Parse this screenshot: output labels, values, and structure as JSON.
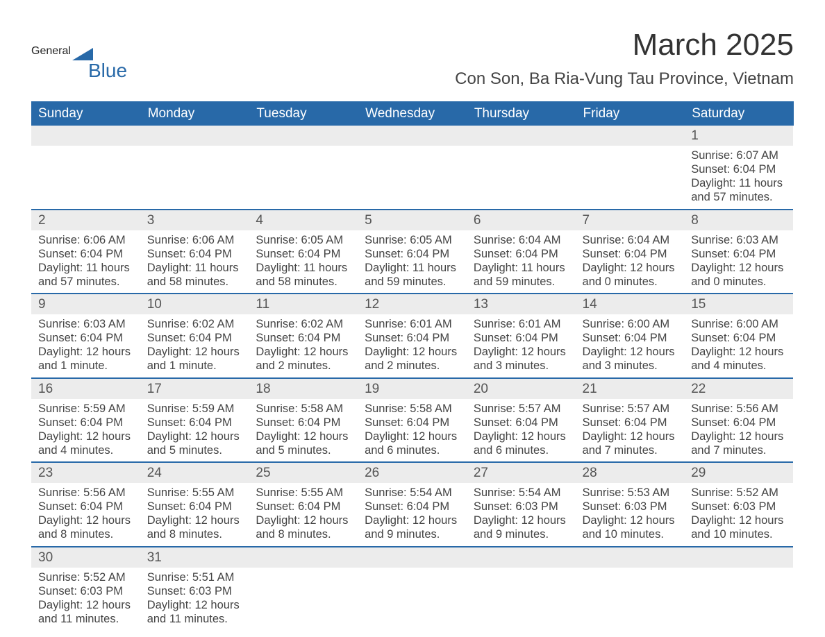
{
  "logo": {
    "text_general": "General",
    "text_blue": "Blue",
    "accent_color": "#2869a8"
  },
  "title": "March 2025",
  "location": "Con Son, Ba Ria-Vung Tau Province, Vietnam",
  "colors": {
    "header_bg": "#2869a8",
    "header_text": "#ffffff",
    "daynum_bg": "#ececec",
    "border": "#2869a8",
    "body_text": "#444444",
    "page_bg": "#ffffff"
  },
  "typography": {
    "title_fontsize": 44,
    "location_fontsize": 24,
    "header_fontsize": 19,
    "daynum_fontsize": 19,
    "body_fontsize": 16.5
  },
  "day_labels": [
    "Sunday",
    "Monday",
    "Tuesday",
    "Wednesday",
    "Thursday",
    "Friday",
    "Saturday"
  ],
  "weeks": [
    [
      null,
      null,
      null,
      null,
      null,
      null,
      {
        "n": "1",
        "sunrise": "Sunrise: 6:07 AM",
        "sunset": "Sunset: 6:04 PM",
        "daylight": "Daylight: 11 hours and 57 minutes."
      }
    ],
    [
      {
        "n": "2",
        "sunrise": "Sunrise: 6:06 AM",
        "sunset": "Sunset: 6:04 PM",
        "daylight": "Daylight: 11 hours and 57 minutes."
      },
      {
        "n": "3",
        "sunrise": "Sunrise: 6:06 AM",
        "sunset": "Sunset: 6:04 PM",
        "daylight": "Daylight: 11 hours and 58 minutes."
      },
      {
        "n": "4",
        "sunrise": "Sunrise: 6:05 AM",
        "sunset": "Sunset: 6:04 PM",
        "daylight": "Daylight: 11 hours and 58 minutes."
      },
      {
        "n": "5",
        "sunrise": "Sunrise: 6:05 AM",
        "sunset": "Sunset: 6:04 PM",
        "daylight": "Daylight: 11 hours and 59 minutes."
      },
      {
        "n": "6",
        "sunrise": "Sunrise: 6:04 AM",
        "sunset": "Sunset: 6:04 PM",
        "daylight": "Daylight: 11 hours and 59 minutes."
      },
      {
        "n": "7",
        "sunrise": "Sunrise: 6:04 AM",
        "sunset": "Sunset: 6:04 PM",
        "daylight": "Daylight: 12 hours and 0 minutes."
      },
      {
        "n": "8",
        "sunrise": "Sunrise: 6:03 AM",
        "sunset": "Sunset: 6:04 PM",
        "daylight": "Daylight: 12 hours and 0 minutes."
      }
    ],
    [
      {
        "n": "9",
        "sunrise": "Sunrise: 6:03 AM",
        "sunset": "Sunset: 6:04 PM",
        "daylight": "Daylight: 12 hours and 1 minute."
      },
      {
        "n": "10",
        "sunrise": "Sunrise: 6:02 AM",
        "sunset": "Sunset: 6:04 PM",
        "daylight": "Daylight: 12 hours and 1 minute."
      },
      {
        "n": "11",
        "sunrise": "Sunrise: 6:02 AM",
        "sunset": "Sunset: 6:04 PM",
        "daylight": "Daylight: 12 hours and 2 minutes."
      },
      {
        "n": "12",
        "sunrise": "Sunrise: 6:01 AM",
        "sunset": "Sunset: 6:04 PM",
        "daylight": "Daylight: 12 hours and 2 minutes."
      },
      {
        "n": "13",
        "sunrise": "Sunrise: 6:01 AM",
        "sunset": "Sunset: 6:04 PM",
        "daylight": "Daylight: 12 hours and 3 minutes."
      },
      {
        "n": "14",
        "sunrise": "Sunrise: 6:00 AM",
        "sunset": "Sunset: 6:04 PM",
        "daylight": "Daylight: 12 hours and 3 minutes."
      },
      {
        "n": "15",
        "sunrise": "Sunrise: 6:00 AM",
        "sunset": "Sunset: 6:04 PM",
        "daylight": "Daylight: 12 hours and 4 minutes."
      }
    ],
    [
      {
        "n": "16",
        "sunrise": "Sunrise: 5:59 AM",
        "sunset": "Sunset: 6:04 PM",
        "daylight": "Daylight: 12 hours and 4 minutes."
      },
      {
        "n": "17",
        "sunrise": "Sunrise: 5:59 AM",
        "sunset": "Sunset: 6:04 PM",
        "daylight": "Daylight: 12 hours and 5 minutes."
      },
      {
        "n": "18",
        "sunrise": "Sunrise: 5:58 AM",
        "sunset": "Sunset: 6:04 PM",
        "daylight": "Daylight: 12 hours and 5 minutes."
      },
      {
        "n": "19",
        "sunrise": "Sunrise: 5:58 AM",
        "sunset": "Sunset: 6:04 PM",
        "daylight": "Daylight: 12 hours and 6 minutes."
      },
      {
        "n": "20",
        "sunrise": "Sunrise: 5:57 AM",
        "sunset": "Sunset: 6:04 PM",
        "daylight": "Daylight: 12 hours and 6 minutes."
      },
      {
        "n": "21",
        "sunrise": "Sunrise: 5:57 AM",
        "sunset": "Sunset: 6:04 PM",
        "daylight": "Daylight: 12 hours and 7 minutes."
      },
      {
        "n": "22",
        "sunrise": "Sunrise: 5:56 AM",
        "sunset": "Sunset: 6:04 PM",
        "daylight": "Daylight: 12 hours and 7 minutes."
      }
    ],
    [
      {
        "n": "23",
        "sunrise": "Sunrise: 5:56 AM",
        "sunset": "Sunset: 6:04 PM",
        "daylight": "Daylight: 12 hours and 8 minutes."
      },
      {
        "n": "24",
        "sunrise": "Sunrise: 5:55 AM",
        "sunset": "Sunset: 6:04 PM",
        "daylight": "Daylight: 12 hours and 8 minutes."
      },
      {
        "n": "25",
        "sunrise": "Sunrise: 5:55 AM",
        "sunset": "Sunset: 6:04 PM",
        "daylight": "Daylight: 12 hours and 8 minutes."
      },
      {
        "n": "26",
        "sunrise": "Sunrise: 5:54 AM",
        "sunset": "Sunset: 6:04 PM",
        "daylight": "Daylight: 12 hours and 9 minutes."
      },
      {
        "n": "27",
        "sunrise": "Sunrise: 5:54 AM",
        "sunset": "Sunset: 6:03 PM",
        "daylight": "Daylight: 12 hours and 9 minutes."
      },
      {
        "n": "28",
        "sunrise": "Sunrise: 5:53 AM",
        "sunset": "Sunset: 6:03 PM",
        "daylight": "Daylight: 12 hours and 10 minutes."
      },
      {
        "n": "29",
        "sunrise": "Sunrise: 5:52 AM",
        "sunset": "Sunset: 6:03 PM",
        "daylight": "Daylight: 12 hours and 10 minutes."
      }
    ],
    [
      {
        "n": "30",
        "sunrise": "Sunrise: 5:52 AM",
        "sunset": "Sunset: 6:03 PM",
        "daylight": "Daylight: 12 hours and 11 minutes."
      },
      {
        "n": "31",
        "sunrise": "Sunrise: 5:51 AM",
        "sunset": "Sunset: 6:03 PM",
        "daylight": "Daylight: 12 hours and 11 minutes."
      },
      null,
      null,
      null,
      null,
      null
    ]
  ]
}
